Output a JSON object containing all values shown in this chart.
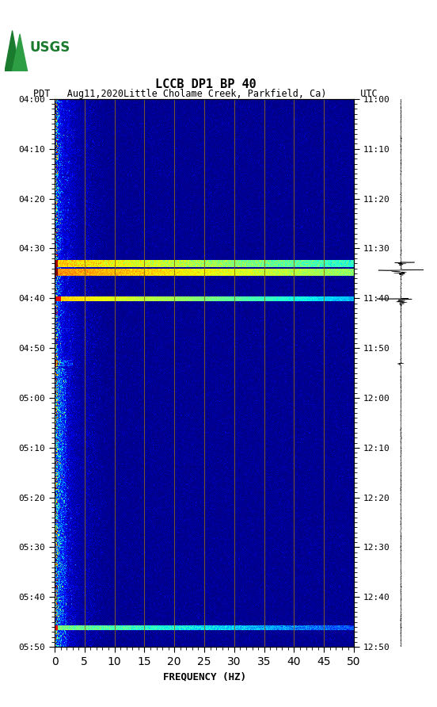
{
  "title_line1": "LCCB DP1 BP 40",
  "title_line2": "PDT   Aug11,2020Little Cholame Creek, Parkfield, Ca)      UTC",
  "xlabel": "FREQUENCY (HZ)",
  "freq_min": 0,
  "freq_max": 50,
  "yticks_pdt": [
    "04:00",
    "04:10",
    "04:20",
    "04:30",
    "04:40",
    "04:50",
    "05:00",
    "05:10",
    "05:20",
    "05:30",
    "05:40",
    "05:50"
  ],
  "yticks_utc": [
    "11:00",
    "11:10",
    "11:20",
    "11:30",
    "11:40",
    "11:50",
    "12:00",
    "12:10",
    "12:20",
    "12:30",
    "12:40",
    "12:50"
  ],
  "xticks": [
    0,
    5,
    10,
    15,
    20,
    25,
    30,
    35,
    40,
    45,
    50
  ],
  "vertical_lines_freq": [
    5,
    10,
    15,
    20,
    25,
    30,
    35,
    40,
    45
  ],
  "vline_color": "#8B6914",
  "colormap": "jet",
  "figsize": [
    5.52,
    8.92
  ],
  "dpi": 100,
  "n_time": 660,
  "n_freq": 500,
  "seed": 42
}
